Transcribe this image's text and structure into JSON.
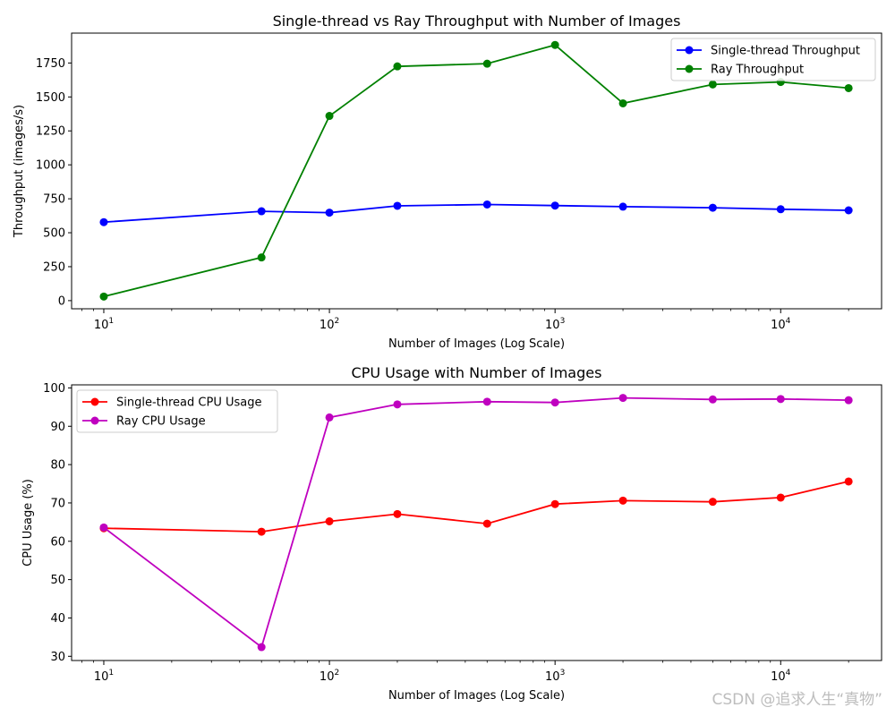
{
  "chart_data": [
    {
      "type": "line",
      "title": "Single-thread vs Ray Throughput with Number of Images",
      "xlabel": "Number of Images (Log Scale)",
      "ylabel": "Throughput (images/s)",
      "xscale": "log",
      "x": [
        10,
        50,
        100,
        200,
        500,
        1000,
        2000,
        5000,
        10000,
        20000
      ],
      "xlim": [
        7.2,
        28000
      ],
      "ylim": [
        -60,
        1970
      ],
      "yticks": [
        0,
        250,
        500,
        750,
        1000,
        1250,
        1500,
        1750
      ],
      "ytick_labels": [
        "0",
        "250",
        "500",
        "750",
        "1000",
        "1250",
        "1500",
        "1750"
      ],
      "xticks": [
        {
          "value": 10,
          "base": "10",
          "exp": "1"
        },
        {
          "value": 100,
          "base": "10",
          "exp": "2"
        },
        {
          "value": 1000,
          "base": "10",
          "exp": "3"
        },
        {
          "value": 10000,
          "base": "10",
          "exp": "4"
        }
      ],
      "legend_position": "top-right",
      "series": [
        {
          "name": "Single-thread Throughput",
          "color": "#0000ff",
          "values": [
            578,
            658,
            648,
            698,
            708,
            700,
            692,
            684,
            673,
            665
          ]
        },
        {
          "name": "Ray Throughput",
          "color": "#008000",
          "values": [
            30,
            318,
            1360,
            1725,
            1745,
            1883,
            1453,
            1592,
            1610,
            1565
          ]
        }
      ]
    },
    {
      "type": "line",
      "title": "CPU Usage with Number of Images",
      "xlabel": "Number of Images (Log Scale)",
      "ylabel": "CPU Usage (%)",
      "xscale": "log",
      "x": [
        10,
        50,
        100,
        200,
        500,
        1000,
        2000,
        5000,
        10000,
        20000
      ],
      "xlim": [
        7.2,
        28000
      ],
      "ylim": [
        28.9,
        100.8
      ],
      "yticks": [
        30,
        40,
        50,
        60,
        70,
        80,
        90,
        100
      ],
      "ytick_labels": [
        "30",
        "40",
        "50",
        "60",
        "70",
        "80",
        "90",
        "100"
      ],
      "xticks": [
        {
          "value": 10,
          "base": "10",
          "exp": "1"
        },
        {
          "value": 100,
          "base": "10",
          "exp": "2"
        },
        {
          "value": 1000,
          "base": "10",
          "exp": "3"
        },
        {
          "value": 10000,
          "base": "10",
          "exp": "4"
        }
      ],
      "legend_position": "top-left",
      "series": [
        {
          "name": "Single-thread CPU Usage",
          "color": "#ff0000",
          "values": [
            63.4,
            62.5,
            65.2,
            67.1,
            64.6,
            69.7,
            70.6,
            70.3,
            71.4,
            75.6
          ]
        },
        {
          "name": "Ray CPU Usage",
          "color": "#bf00bf",
          "values": [
            63.6,
            32.4,
            92.3,
            95.7,
            96.4,
            96.2,
            97.4,
            97.0,
            97.1,
            96.8
          ]
        }
      ]
    }
  ],
  "watermark": "CSDN @追求人生“真物”"
}
